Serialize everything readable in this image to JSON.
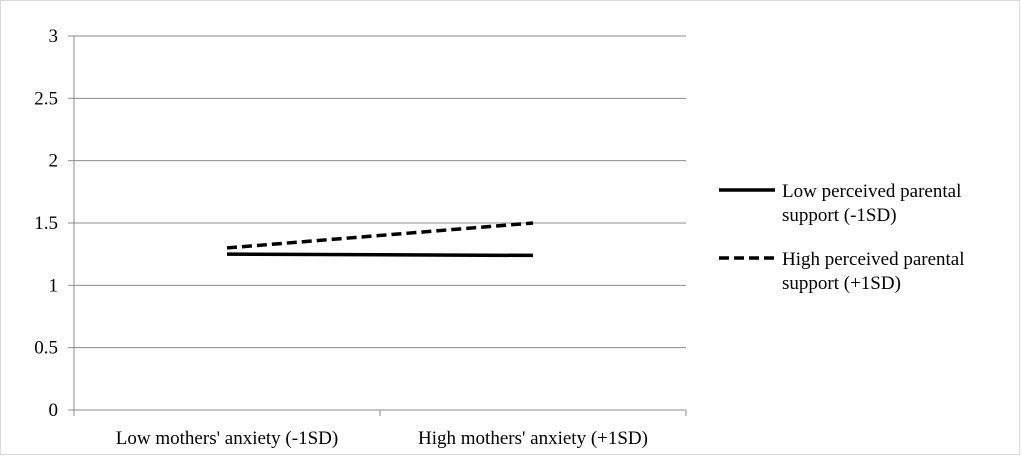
{
  "chart_data": {
    "type": "line",
    "title": "",
    "xlabel": "",
    "ylabel": "",
    "categories": [
      "Low mothers' anxiety (-1SD)",
      "High mothers' anxiety (+1SD)"
    ],
    "ylim": [
      0,
      3
    ],
    "yticks": [
      "0",
      "0.5",
      "1",
      "1.5",
      "2",
      "2.5",
      "3"
    ],
    "ytick_values": [
      0,
      0.5,
      1,
      1.5,
      2,
      2.5,
      3
    ],
    "grid": true,
    "legend_position": "right",
    "series": [
      {
        "name": "Low perceived parental support (-1SD)",
        "legend_lines": [
          "Low perceived parental",
          "support (-1SD)"
        ],
        "values": [
          1.25,
          1.24
        ],
        "style": "solid",
        "color": "#000000"
      },
      {
        "name": "High perceived parental support (+1SD)",
        "legend_lines": [
          "High perceived parental",
          "support (+1SD)"
        ],
        "values": [
          1.3,
          1.5
        ],
        "style": "dashed",
        "color": "#000000"
      }
    ],
    "colors": {
      "gridline": "#8c8c8c",
      "axis": "#8c8c8c",
      "border": "#d9d9d9"
    }
  }
}
